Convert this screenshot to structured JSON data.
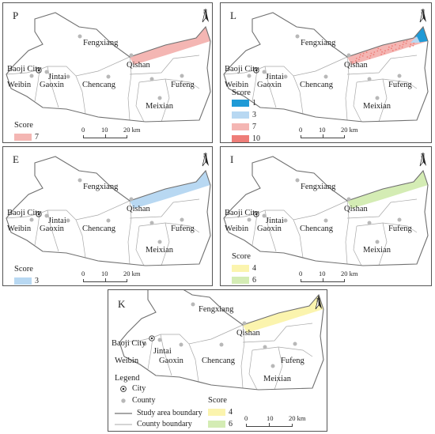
{
  "places": {
    "fengxiang": "Fengxiang",
    "qishan": "Qishan",
    "baoji": "Baoji City",
    "jintai": "Jintai",
    "weibin": "Weibin",
    "gaoxin": "Gaoxin",
    "chencang": "Chencang",
    "fufeng": "Fufeng",
    "meixian": "Meixian"
  },
  "north_label": "N",
  "legend_title": "Score",
  "scale": {
    "t0": "0",
    "t10": "10",
    "t20": "20 km"
  },
  "panels": {
    "P": {
      "letter": "P",
      "items": [
        {
          "label": "7",
          "color": "#f4b6b3"
        }
      ]
    },
    "L": {
      "letter": "L",
      "items": [
        {
          "label": "1",
          "color": "#1f9ad6"
        },
        {
          "label": "3",
          "color": "#b8d8f2"
        },
        {
          "label": "7",
          "color": "#f4b6b3"
        },
        {
          "label": "10",
          "color": "#ee7d78"
        }
      ]
    },
    "E": {
      "letter": "E",
      "items": [
        {
          "label": "3",
          "color": "#b8d8f2"
        }
      ]
    },
    "I": {
      "letter": "I",
      "items": [
        {
          "label": "4",
          "color": "#fbf4ae"
        },
        {
          "label": "6",
          "color": "#d4ecb4"
        }
      ]
    },
    "K": {
      "letter": "K",
      "items": [
        {
          "label": "4",
          "color": "#fbf4ae"
        },
        {
          "label": "6",
          "color": "#d4ecb4"
        }
      ]
    }
  },
  "k_legend": {
    "title": "Legend",
    "city": "City",
    "county": "County",
    "study_boundary": "Study area boundary",
    "county_boundary": "County boundary"
  },
  "colors": {
    "boundary": "#9a9a9a",
    "outline": "#707070",
    "county_dot": "#b8b8b8"
  }
}
